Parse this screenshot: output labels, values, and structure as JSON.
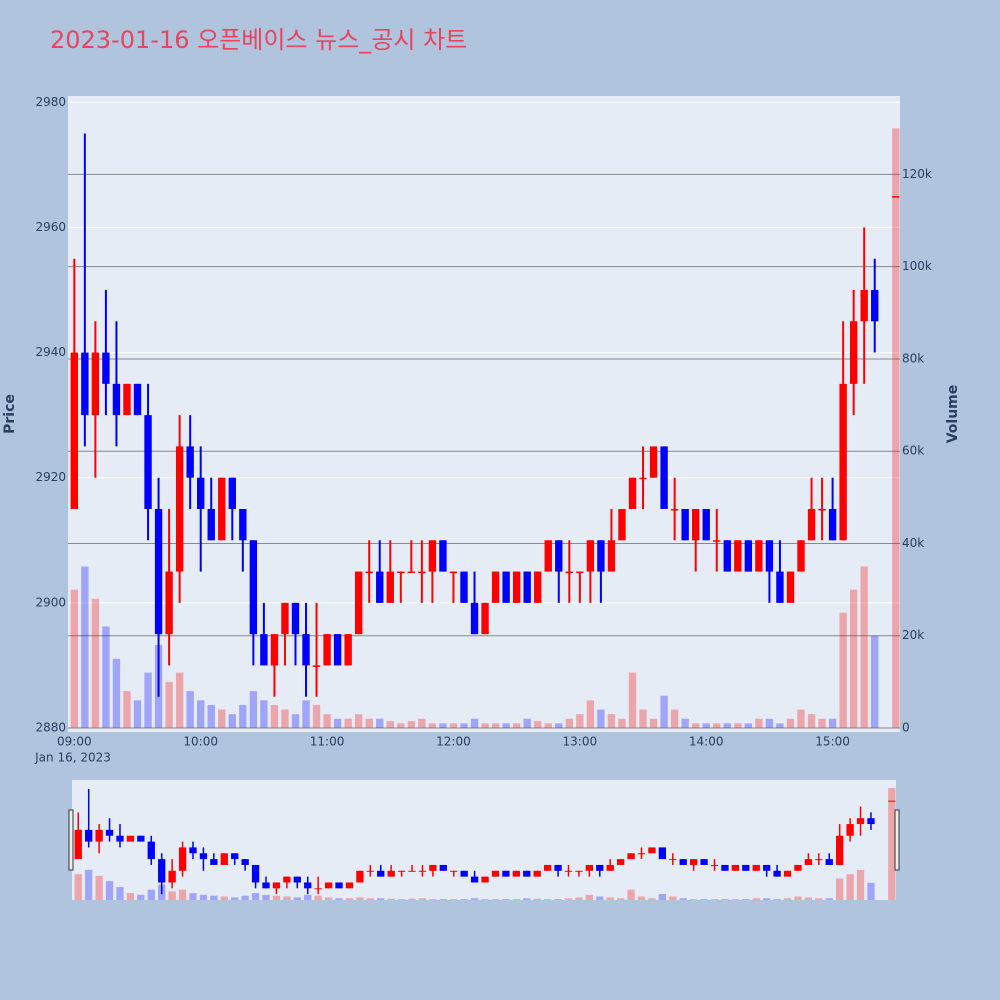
{
  "chart_data": {
    "type": "candlestick",
    "title": "2023-01-16 오픈베이스 뉴스_공시 차트",
    "x_date_label": "Jan 16, 2023",
    "ylabel": "Price",
    "y2label": "Volume",
    "increasing_color": "#ff0000",
    "decreasing_color": "#0000ff",
    "xlim": [
      "08:57",
      "15:32"
    ],
    "xticks": [
      "09:00",
      "10:00",
      "11:00",
      "12:00",
      "13:00",
      "14:00",
      "15:00"
    ],
    "ylim": [
      2880,
      2981
    ],
    "yticks": [
      2880,
      2900,
      2920,
      2940,
      2960,
      2980
    ],
    "y2lim": [
      0,
      137000
    ],
    "y2ticks": [
      {
        "value": 0,
        "label": "0"
      },
      {
        "value": 20000,
        "label": "20k"
      },
      {
        "value": 40000,
        "label": "40k"
      },
      {
        "value": 60000,
        "label": "60k"
      },
      {
        "value": 80000,
        "label": "80k"
      },
      {
        "value": 100000,
        "label": "100k"
      },
      {
        "value": 120000,
        "label": "120k"
      }
    ],
    "x": [
      "09:00",
      "09:05",
      "09:10",
      "09:15",
      "09:20",
      "09:25",
      "09:30",
      "09:35",
      "09:40",
      "09:45",
      "09:50",
      "09:55",
      "10:00",
      "10:05",
      "10:10",
      "10:15",
      "10:20",
      "10:25",
      "10:30",
      "10:35",
      "10:40",
      "10:45",
      "10:50",
      "10:55",
      "11:00",
      "11:05",
      "11:10",
      "11:15",
      "11:20",
      "11:25",
      "11:30",
      "11:35",
      "11:40",
      "11:45",
      "11:50",
      "11:55",
      "12:00",
      "12:05",
      "12:10",
      "12:15",
      "12:20",
      "12:25",
      "12:30",
      "12:35",
      "12:40",
      "12:45",
      "12:50",
      "12:55",
      "13:00",
      "13:05",
      "13:10",
      "13:15",
      "13:20",
      "13:25",
      "13:30",
      "13:35",
      "13:40",
      "13:45",
      "13:50",
      "13:55",
      "14:00",
      "14:05",
      "14:10",
      "14:15",
      "14:20",
      "14:25",
      "14:30",
      "14:35",
      "14:40",
      "14:45",
      "14:50",
      "14:55",
      "15:00",
      "15:05",
      "15:10",
      "15:15",
      "15:20",
      "15:30"
    ],
    "open": [
      2915,
      2940,
      2930,
      2940,
      2935,
      2930,
      2935,
      2930,
      2915,
      2895,
      2905,
      2925,
      2920,
      2915,
      2910,
      2920,
      2915,
      2910,
      2895,
      2890,
      2895,
      2900,
      2895,
      2890,
      2890,
      2895,
      2890,
      2895,
      2905,
      2905,
      2900,
      2905,
      2905,
      2905,
      2905,
      2910,
      2905,
      2905,
      2900,
      2895,
      2900,
      2905,
      2900,
      2905,
      2900,
      2905,
      2910,
      2905,
      2905,
      2905,
      2910,
      2905,
      2910,
      2915,
      2920,
      2920,
      2925,
      2915,
      2915,
      2910,
      2915,
      2910,
      2910,
      2905,
      2910,
      2905,
      2910,
      2905,
      2900,
      2905,
      2910,
      2915,
      2915,
      2910,
      2935,
      2945,
      2950,
      2965
    ],
    "high": [
      2955,
      2975,
      2945,
      2950,
      2945,
      2935,
      2935,
      2935,
      2920,
      2915,
      2930,
      2930,
      2925,
      2920,
      2920,
      2920,
      2915,
      2910,
      2900,
      2895,
      2900,
      2900,
      2900,
      2900,
      2895,
      2895,
      2895,
      2905,
      2910,
      2910,
      2910,
      2905,
      2910,
      2910,
      2910,
      2910,
      2905,
      2905,
      2905,
      2900,
      2905,
      2905,
      2905,
      2905,
      2905,
      2910,
      2910,
      2910,
      2905,
      2910,
      2910,
      2915,
      2915,
      2920,
      2925,
      2925,
      2925,
      2920,
      2915,
      2915,
      2915,
      2915,
      2910,
      2910,
      2910,
      2910,
      2910,
      2910,
      2905,
      2910,
      2920,
      2920,
      2920,
      2945,
      2950,
      2960,
      2955,
      2965
    ],
    "low": [
      2915,
      2925,
      2920,
      2930,
      2925,
      2930,
      2930,
      2910,
      2885,
      2890,
      2900,
      2915,
      2905,
      2910,
      2910,
      2910,
      2905,
      2890,
      2890,
      2885,
      2890,
      2890,
      2885,
      2885,
      2890,
      2890,
      2890,
      2895,
      2900,
      2900,
      2900,
      2900,
      2905,
      2900,
      2900,
      2905,
      2900,
      2900,
      2895,
      2895,
      2900,
      2900,
      2900,
      2900,
      2900,
      2905,
      2900,
      2900,
      2900,
      2900,
      2900,
      2905,
      2910,
      2915,
      2915,
      2920,
      2915,
      2910,
      2910,
      2905,
      2910,
      2905,
      2905,
      2905,
      2905,
      2905,
      2900,
      2900,
      2900,
      2905,
      2910,
      2910,
      2910,
      2910,
      2930,
      2935,
      2940,
      2965
    ],
    "close": [
      2940,
      2930,
      2940,
      2935,
      2930,
      2935,
      2930,
      2915,
      2895,
      2905,
      2925,
      2920,
      2915,
      2910,
      2920,
      2915,
      2910,
      2895,
      2890,
      2895,
      2900,
      2895,
      2890,
      2890,
      2895,
      2890,
      2895,
      2905,
      2905,
      2900,
      2905,
      2905,
      2905,
      2905,
      2910,
      2905,
      2905,
      2900,
      2895,
      2900,
      2905,
      2900,
      2905,
      2900,
      2905,
      2910,
      2905,
      2905,
      2905,
      2910,
      2905,
      2910,
      2915,
      2920,
      2920,
      2925,
      2915,
      2915,
      2910,
      2915,
      2910,
      2910,
      2905,
      2910,
      2905,
      2910,
      2905,
      2900,
      2905,
      2910,
      2915,
      2915,
      2910,
      2935,
      2945,
      2950,
      2945,
      2965
    ],
    "volume": [
      30000,
      35000,
      28000,
      22000,
      15000,
      8000,
      6000,
      12000,
      18000,
      10000,
      12000,
      8000,
      6000,
      5000,
      4000,
      3000,
      5000,
      8000,
      6000,
      5000,
      4000,
      3000,
      6000,
      5000,
      3000,
      2000,
      2000,
      3000,
      2000,
      2000,
      1500,
      1000,
      1500,
      2000,
      1000,
      1000,
      1000,
      1000,
      2000,
      1000,
      1000,
      1000,
      1000,
      2000,
      1500,
      1000,
      1000,
      2000,
      3000,
      6000,
      4000,
      3000,
      2000,
      12000,
      4000,
      2000,
      7000,
      4000,
      2000,
      1000,
      1000,
      1000,
      1000,
      1000,
      1000,
      2000,
      2000,
      1000,
      2000,
      4000,
      3000,
      2000,
      2000,
      25000,
      30000,
      35000,
      20000,
      130000
    ]
  }
}
